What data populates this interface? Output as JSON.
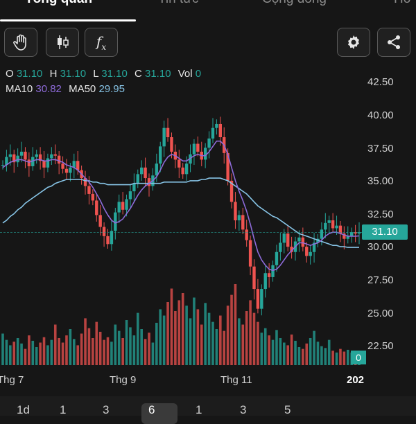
{
  "tabs": [
    {
      "label": "Tổng quan"
    },
    {
      "label": "Tin tức"
    },
    {
      "label": "Cộng đồng"
    },
    {
      "label": "Hồ"
    }
  ],
  "toolbar": {
    "icons": [
      "hand-icon",
      "candlestick-icon",
      "fx-icon",
      "gear-icon",
      "share-icon"
    ],
    "fx_label": "f",
    "fx_sub": "x"
  },
  "ohlc": {
    "o_label": "O",
    "o": "31.10",
    "h_label": "H",
    "h": "31.10",
    "l_label": "L",
    "l": "31.10",
    "c_label": "C",
    "c": "31.10",
    "vol_label": "Vol",
    "vol": "0"
  },
  "ma": {
    "ma10_label": "MA10",
    "ma10": "30.82",
    "ma50_label": "MA50",
    "ma50": "29.95"
  },
  "colors": {
    "up": "#26a69a",
    "down": "#ef5350",
    "ma10": "#8e6bd9",
    "ma50": "#87c4e6"
  },
  "chart_data": {
    "type": "candlestick",
    "y_ticks": [
      "42.50",
      "40.00",
      "37.50",
      "35.00",
      "32.50",
      "30.00",
      "27.50",
      "25.00",
      "22.50"
    ],
    "ylim": [
      21.5,
      43.5
    ],
    "x_ticks": [
      "Thg 7",
      "Thg 9",
      "Thg 11",
      "202"
    ],
    "last_price": "31.10",
    "last_volume": "0",
    "close_series": [
      36.2,
      36.8,
      37.0,
      36.4,
      36.9,
      37.2,
      36.6,
      36.1,
      36.8,
      37.0,
      36.5,
      36.0,
      36.7,
      37.0,
      36.9,
      36.3,
      35.9,
      35.6,
      36.0,
      36.5,
      35.8,
      35.2,
      34.6,
      34.0,
      33.5,
      32.4,
      31.5,
      30.8,
      30.2,
      31.2,
      32.6,
      33.4,
      32.8,
      33.6,
      34.2,
      34.8,
      35.5,
      36.0,
      35.2,
      34.6,
      35.4,
      36.3,
      37.6,
      39.0,
      38.3,
      37.2,
      36.6,
      36.0,
      35.5,
      36.3,
      37.0,
      37.8,
      37.2,
      36.6,
      37.5,
      38.2,
      39.0,
      39.3,
      38.3,
      37.1,
      35.0,
      33.4,
      32.0,
      32.4,
      31.3,
      30.5,
      28.5,
      26.8,
      25.3,
      26.8,
      28.0,
      27.7,
      28.6,
      29.6,
      30.3,
      31.0,
      30.0,
      29.6,
      30.4,
      30.7,
      30.0,
      29.3,
      29.6,
      30.3,
      30.6,
      31.3,
      31.8,
      32.0,
      31.4,
      31.6,
      31.0,
      30.6,
      30.8,
      31.1,
      31.0,
      31.1
    ],
    "ma10_series": [
      36.0,
      36.2,
      36.4,
      36.5,
      36.6,
      36.6,
      36.5,
      36.4,
      36.5,
      36.6,
      36.6,
      36.5,
      36.5,
      36.6,
      36.6,
      36.5,
      36.4,
      36.2,
      36.1,
      36.0,
      35.8,
      35.5,
      35.2,
      34.9,
      34.5,
      34.0,
      33.5,
      32.9,
      32.4,
      32.0,
      31.8,
      31.9,
      32.1,
      32.5,
      32.9,
      33.4,
      33.9,
      34.3,
      34.6,
      34.8,
      35.0,
      35.3,
      35.8,
      36.4,
      36.8,
      37.0,
      36.9,
      36.7,
      36.5,
      36.5,
      36.7,
      36.9,
      37.0,
      36.9,
      36.9,
      37.2,
      37.6,
      38.0,
      38.0,
      37.7,
      37.0,
      36.0,
      35.0,
      34.2,
      33.5,
      32.7,
      31.7,
      30.6,
      29.6,
      29.0,
      28.6,
      28.3,
      28.2,
      28.3,
      28.6,
      29.0,
      29.4,
      29.7,
      30.0,
      30.3,
      30.3,
      30.2,
      30.1,
      30.2,
      30.3,
      30.5,
      30.8,
      31.0,
      31.1,
      31.1,
      31.0,
      30.9,
      30.8,
      30.8,
      30.8,
      30.82
    ],
    "ma50_series": [
      31.8,
      32.0,
      32.3,
      32.5,
      32.8,
      33.0,
      33.3,
      33.5,
      33.7,
      33.9,
      34.1,
      34.3,
      34.5,
      34.6,
      34.8,
      34.9,
      35.0,
      35.1,
      35.1,
      35.1,
      35.1,
      35.1,
      35.0,
      35.0,
      34.9,
      34.9,
      34.8,
      34.8,
      34.7,
      34.7,
      34.7,
      34.7,
      34.7,
      34.7,
      34.7,
      34.8,
      34.8,
      34.8,
      34.8,
      34.8,
      34.8,
      34.8,
      34.8,
      34.9,
      34.9,
      34.9,
      34.9,
      34.9,
      34.9,
      34.9,
      35.0,
      35.0,
      35.0,
      35.1,
      35.1,
      35.2,
      35.2,
      35.2,
      35.2,
      35.1,
      35.0,
      34.8,
      34.6,
      34.4,
      34.2,
      34.0,
      33.7,
      33.4,
      33.1,
      32.9,
      32.7,
      32.5,
      32.3,
      32.2,
      32.0,
      31.8,
      31.6,
      31.4,
      31.2,
      31.0,
      30.9,
      30.8,
      30.7,
      30.6,
      30.5,
      30.4,
      30.3,
      30.2,
      30.1,
      30.1,
      30.0,
      30.0,
      29.95,
      29.95,
      29.95,
      29.95
    ],
    "volume_series": [
      0.35,
      0.28,
      0.22,
      0.26,
      0.3,
      0.24,
      0.18,
      0.33,
      0.27,
      0.2,
      0.25,
      0.31,
      0.22,
      0.28,
      0.45,
      0.3,
      0.25,
      0.33,
      0.4,
      0.29,
      0.22,
      0.35,
      0.52,
      0.41,
      0.3,
      0.48,
      0.37,
      0.28,
      0.31,
      0.26,
      0.45,
      0.38,
      0.3,
      0.5,
      0.42,
      0.33,
      0.58,
      0.4,
      0.29,
      0.36,
      0.25,
      0.47,
      0.62,
      0.55,
      0.7,
      0.85,
      0.6,
      0.72,
      0.8,
      0.66,
      0.52,
      0.75,
      0.62,
      0.45,
      0.69,
      0.58,
      0.48,
      0.4,
      0.55,
      0.38,
      0.66,
      0.78,
      0.9,
      0.52,
      0.45,
      0.6,
      0.72,
      0.58,
      0.48,
      0.36,
      0.41,
      0.33,
      0.28,
      0.39,
      0.3,
      0.25,
      0.22,
      0.34,
      0.27,
      0.2,
      0.18,
      0.24,
      0.3,
      0.38,
      0.26,
      0.21,
      0.19,
      0.28,
      0.16,
      0.14,
      0.18,
      0.15,
      0.17,
      0.14,
      0.16,
      0.14
    ]
  },
  "ranges": [
    {
      "label": "1d"
    },
    {
      "label": "1"
    },
    {
      "label": "3"
    },
    {
      "label": "6"
    },
    {
      "label": "1"
    },
    {
      "label": "3"
    },
    {
      "label": "5"
    }
  ]
}
